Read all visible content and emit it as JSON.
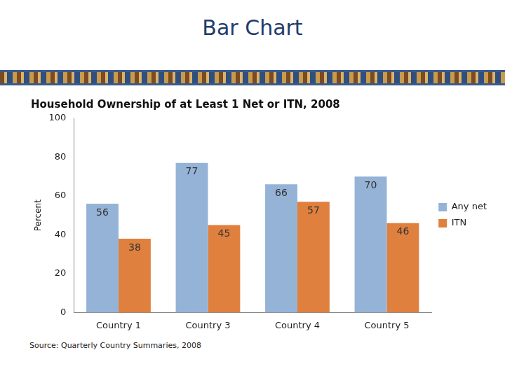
{
  "header": {
    "title": "Bar Chart"
  },
  "chart_data": {
    "type": "bar",
    "title": "Household Ownership of at Least 1 Net or ITN, 2008",
    "y_label": "Percent",
    "source": "Source: Quarterly Country Summaries, 2008",
    "categories": [
      "Country 1",
      "Country 3",
      "Country 4",
      "Country 5"
    ],
    "series": [
      {
        "name": "Any net",
        "color": "#95b3d7",
        "values": [
          56,
          77,
          66,
          70
        ]
      },
      {
        "name": "ITN",
        "color": "#e0803e",
        "values": [
          38,
          45,
          57,
          46
        ]
      }
    ],
    "ylim": [
      0,
      100
    ],
    "yticks": [
      0,
      20,
      40,
      60,
      80,
      100
    ],
    "grid": false,
    "legend": "right",
    "data_labels": true
  }
}
